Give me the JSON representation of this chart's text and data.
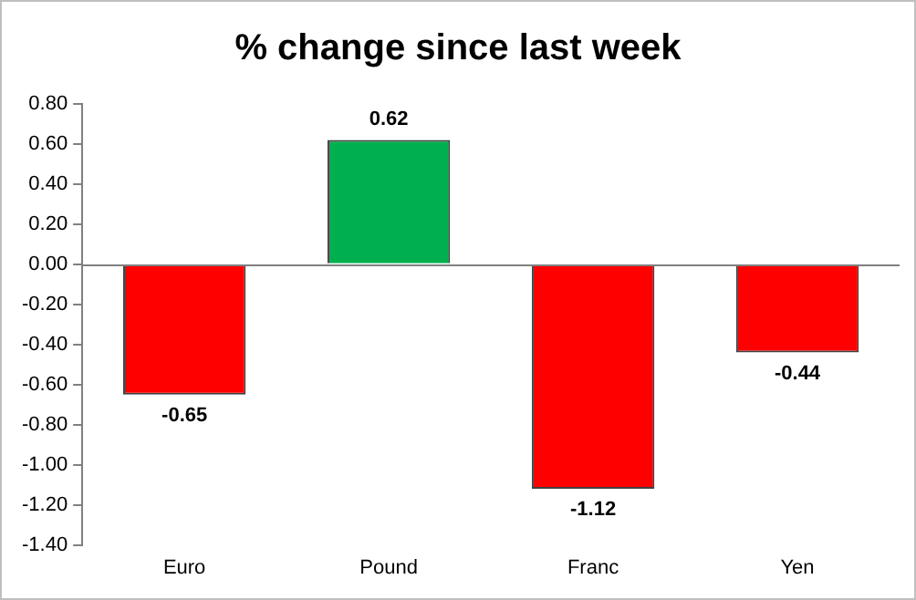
{
  "chart_data": {
    "type": "bar",
    "title": "% change since last week",
    "categories": [
      "Euro",
      "Pound",
      "Franc",
      "Yen"
    ],
    "values": [
      -0.65,
      0.62,
      -1.12,
      -0.44
    ],
    "colors": [
      "#ff0000",
      "#00b050",
      "#ff0000",
      "#ff0000"
    ],
    "ylim": [
      -1.4,
      0.8
    ],
    "yticks": [
      {
        "value": -1.4,
        "label": "-1.40"
      },
      {
        "value": -1.2,
        "label": "-1.20"
      },
      {
        "value": -1,
        "label": "-1.00"
      },
      {
        "value": -0.8,
        "label": "-0.80"
      },
      {
        "value": -0.6,
        "label": "-0.60"
      },
      {
        "value": -0.4,
        "label": "-0.40"
      },
      {
        "value": -0.2,
        "label": "-0.20"
      },
      {
        "value": 0,
        "label": "0.00"
      },
      {
        "value": 0.2,
        "label": "0.20"
      },
      {
        "value": 0.4,
        "label": "0.40"
      },
      {
        "value": 0.6,
        "label": "0.60"
      },
      {
        "value": 0.8,
        "label": "0.80"
      }
    ],
    "ref_lines": [
      {
        "axis": "y",
        "value": 0,
        "color": "#808080"
      }
    ],
    "data_labels": true,
    "grid": false,
    "legend": false
  }
}
